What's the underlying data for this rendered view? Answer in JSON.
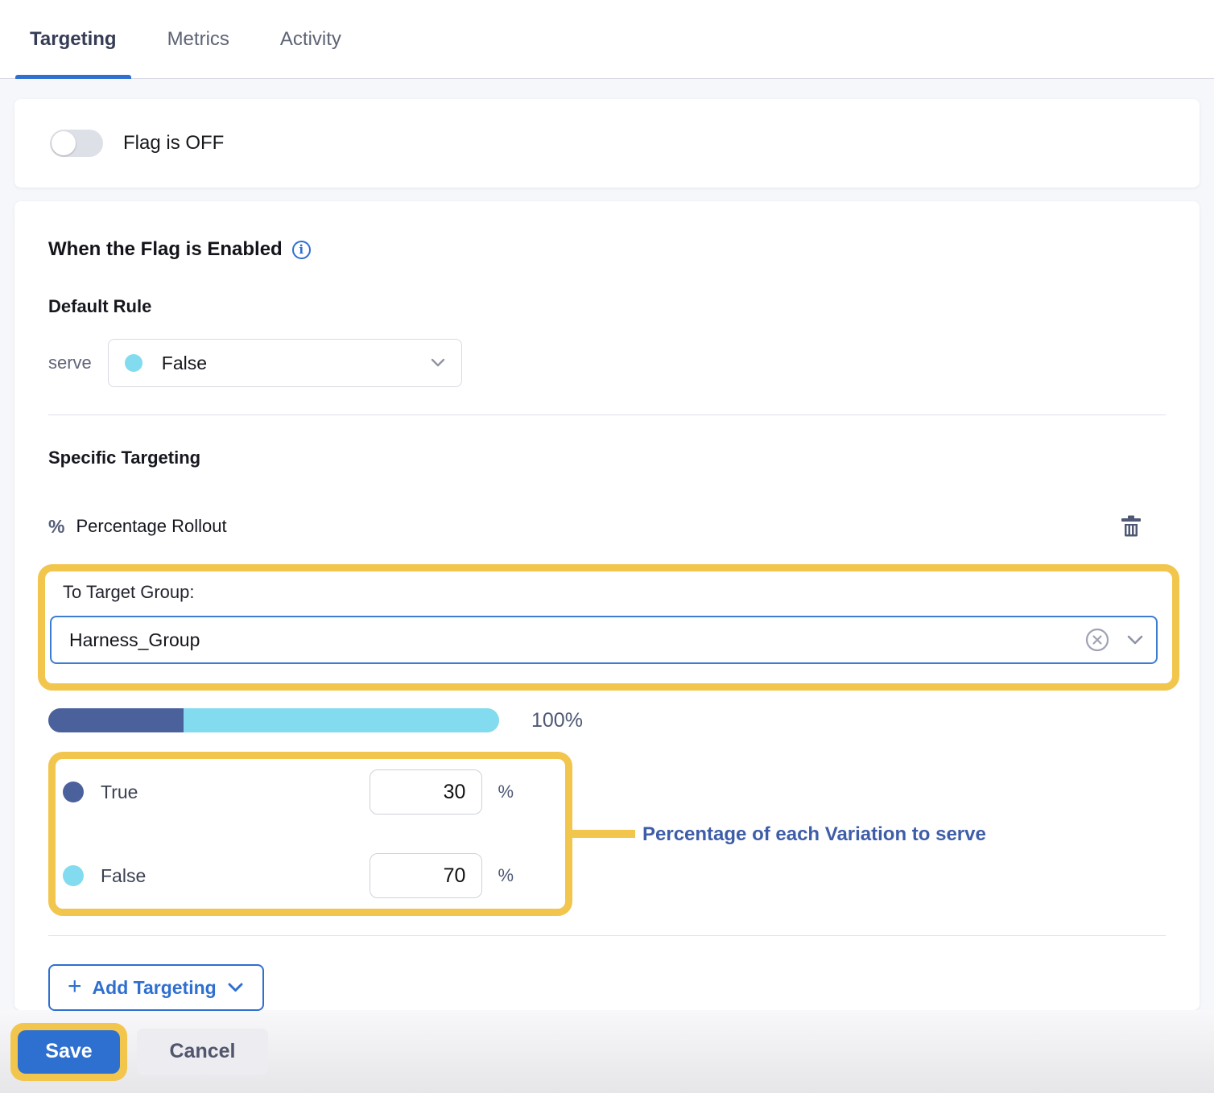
{
  "tabs": [
    {
      "label": "Targeting",
      "active": true
    },
    {
      "label": "Metrics",
      "active": false
    },
    {
      "label": "Activity",
      "active": false
    }
  ],
  "flag_card": {
    "toggle_label": "Flag is OFF",
    "toggle_state": "off"
  },
  "enabled_section": {
    "title": "When the Flag is Enabled",
    "info_glyph": "i",
    "default_rule_label": "Default Rule",
    "serve_label": "serve",
    "serve_value": "False"
  },
  "specific_targeting": {
    "title": "Specific Targeting",
    "percent_glyph": "%",
    "rollout_label": "Percentage Rollout",
    "target_group_label": "To Target Group:",
    "target_group_value": "Harness_Group",
    "progress": {
      "true_pct": 30,
      "false_pct": 70,
      "total_label": "100%"
    },
    "variations": [
      {
        "label": "True",
        "value": "30",
        "unit": "%"
      },
      {
        "label": "False",
        "value": "70",
        "unit": "%"
      }
    ],
    "annotation": "Percentage of each Variation to serve",
    "add_plus_glyph": "+",
    "add_targeting_label": "Add Targeting"
  },
  "footer": {
    "save_label": "Save",
    "cancel_label": "Cancel"
  },
  "colors": {
    "accent_blue": "#2e70d0",
    "highlight_yellow": "#f2c54d",
    "variation_true": "#4a619b",
    "variation_false": "#82dbee",
    "annotation_blue": "#3e5da8"
  }
}
